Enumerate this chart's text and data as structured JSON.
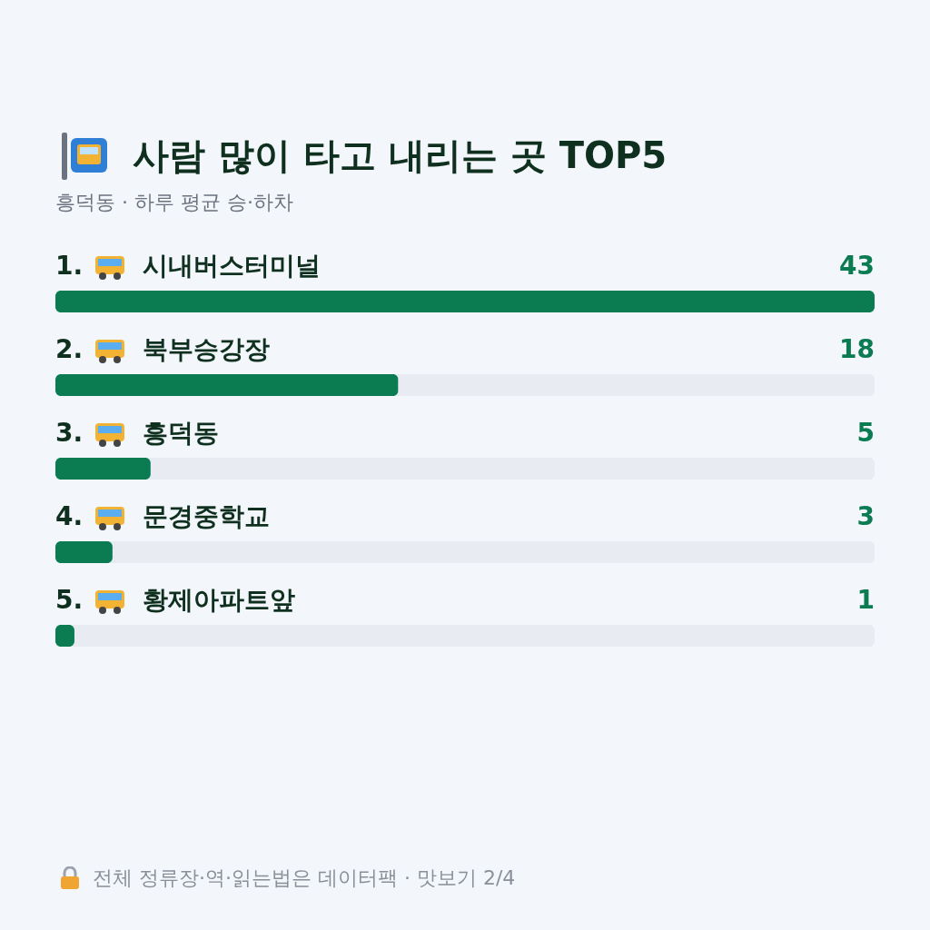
{
  "chart_data": {
    "type": "bar",
    "orientation": "horizontal",
    "title": "사람 많이 타고 내리는 곳 TOP5",
    "subtitle": "흥덕동 · 하루 평균 승·하차",
    "categories": [
      "1. 시내버스터미널",
      "2. 북부승강장",
      "3. 흥덕동",
      "4. 문경중학교",
      "5. 황제아파트앞"
    ],
    "values": [
      43,
      18,
      5,
      3,
      1
    ],
    "color": "#0b7b52",
    "xlim": [
      0,
      43
    ],
    "data_labels": true,
    "tick_labels": false,
    "annotations": [
      "전체 정류장·역·읽는법은 데이터팩 · 맛보기 2/4"
    ]
  }
}
